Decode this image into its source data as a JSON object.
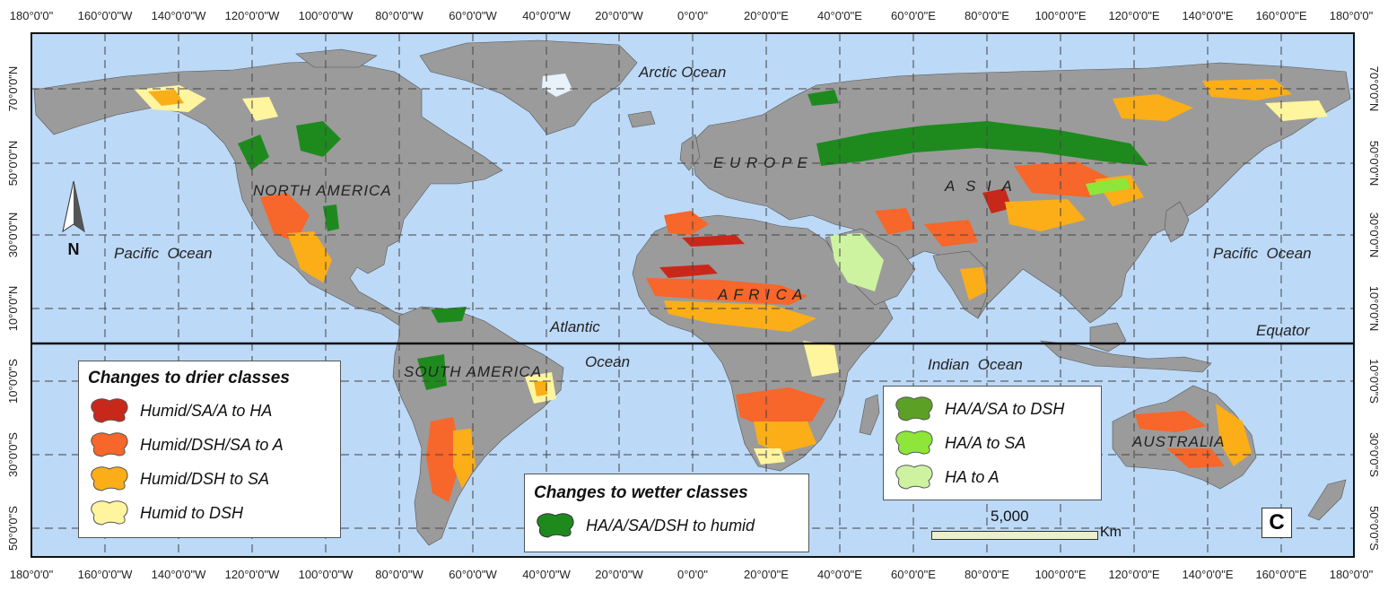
{
  "map": {
    "top_ticks": [
      "180°0'0\"",
      "160°0'0\"W",
      "140°0'0\"W",
      "120°0'0\"W",
      "100°0'0\"W",
      "80°0'0\"W",
      "60°0'0\"W",
      "40°0'0\"W",
      "20°0'0\"W",
      "0°0'0\"",
      "20°0'0\"E",
      "40°0'0\"E",
      "60°0'0\"E",
      "80°0'0\"E",
      "100°0'0\"E",
      "120°0'0\"E",
      "140°0'0\"E",
      "160°0'0\"E",
      "180°0'0\""
    ],
    "side_ticks": [
      "70°0'0\"N",
      "50°0'0\"N",
      "30°0'0\"N",
      "10°0'0\"N",
      "10°0'0\"S",
      "30°0'0\"S",
      "50°0'0\"S"
    ],
    "oceans": {
      "arctic": "Arctic Ocean",
      "pacific_left": "Pacific  Ocean",
      "pacific_right": "Pacific  Ocean",
      "atlantic_1": "Atlantic",
      "atlantic_2": "Ocean",
      "indian": "Indian  Ocean",
      "equator": "Equator"
    },
    "continents": {
      "north_america": "NORTH AMERICA",
      "south_america": "SOUTH AMERICA",
      "europe": "E U R O P E",
      "asia": "A  S  I  A",
      "africa": "A F R I C A",
      "australia": "AUSTRALIA"
    },
    "north_arrow_label": "N",
    "panel_letter": "C",
    "scale": {
      "value": "5,000",
      "unit": "Km"
    },
    "colors": {
      "ocean": "#bcd9f7",
      "land": "#9b9b9b",
      "humid_sa_a_to_ha": "#c8281a",
      "humid_dsh_sa_to_a": "#f7662a",
      "humid_dsh_to_sa": "#fbae18",
      "humid_to_dsh": "#fff59e",
      "ha_a_sa_dsh_to_humid": "#1e8a1e",
      "ha_a_sa_to_dsh": "#5ca126",
      "ha_a_to_sa": "#8ee63a",
      "ha_to_a": "#cdf3a0"
    }
  },
  "legend_drier": {
    "title": "Changes to drier classes",
    "items": [
      {
        "label": "Humid/SA/A to HA",
        "color": "#c8281a"
      },
      {
        "label": "Humid/DSH/SA to A",
        "color": "#f7662a"
      },
      {
        "label": "Humid/DSH to SA",
        "color": "#fbae18"
      },
      {
        "label": "Humid to DSH",
        "color": "#fff59e"
      }
    ]
  },
  "legend_wetter": {
    "title": "Changes to wetter classes",
    "items": [
      {
        "label": "HA/A/SA/DSH to humid",
        "color": "#1e8a1e"
      }
    ]
  },
  "legend_right": {
    "items": [
      {
        "label": "HA/A/SA to DSH",
        "color": "#5ca126"
      },
      {
        "label": "HA/A to SA",
        "color": "#8ee63a"
      },
      {
        "label": "HA to A",
        "color": "#cdf3a0"
      }
    ]
  }
}
